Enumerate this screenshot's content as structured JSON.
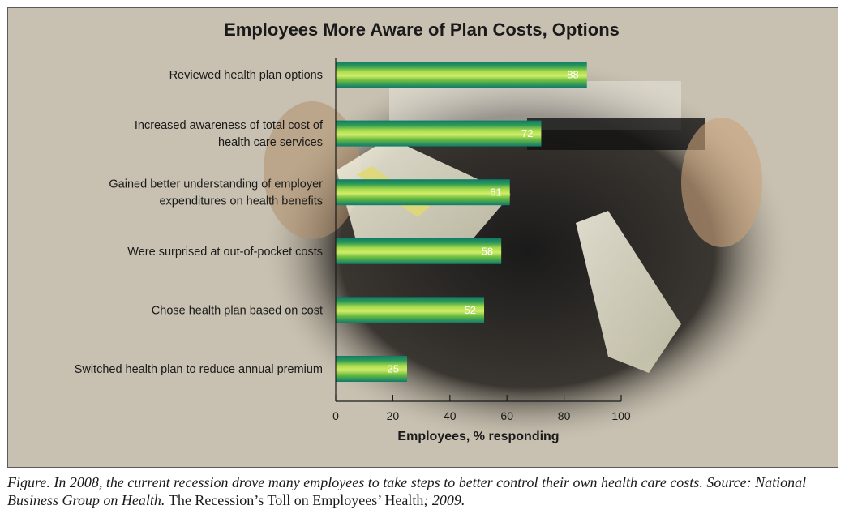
{
  "chart_data": {
    "type": "bar",
    "orientation": "horizontal",
    "title": "Employees More Aware of Plan Costs, Options",
    "xlabel": "Employees, % responding",
    "ylabel": "",
    "xlim": [
      0,
      100
    ],
    "xticks": [
      0,
      20,
      40,
      60,
      80,
      100
    ],
    "grid": false,
    "categories": [
      [
        "Reviewed health plan options"
      ],
      [
        "Increased awareness of total cost of",
        "health care services"
      ],
      [
        "Gained better understanding of employer",
        "expenditures on health benefits"
      ],
      [
        "Were surprised at out-of-pocket costs"
      ],
      [
        "Chose health plan based on cost"
      ],
      [
        "Switched health plan to reduce annual premium"
      ]
    ],
    "values": [
      88,
      72,
      61,
      58,
      52,
      25
    ],
    "data_labels": [
      "88",
      "72",
      "61",
      "58",
      "52",
      "25"
    ],
    "bar_colors": {
      "edge": "#0f7a6a",
      "light": "#b5e04e",
      "mid": "#53b43c"
    }
  },
  "panel": {
    "background": "#c8c1b1"
  },
  "caption": {
    "part1": "Figure. In 2008, the current recession drove many employees to take steps to better control their own health care costs. Source: National Business Group on Health. ",
    "part2": "The Recession’s Toll on Employees’ Health",
    "part3": "; 2009."
  }
}
